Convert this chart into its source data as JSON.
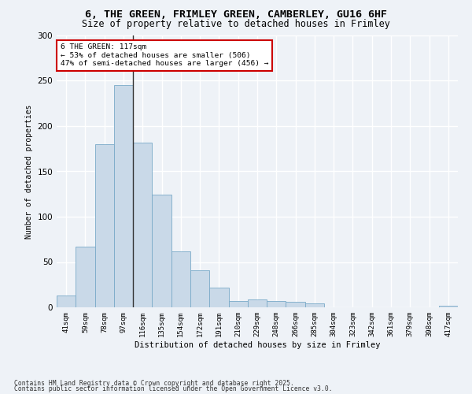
{
  "title_line1": "6, THE GREEN, FRIMLEY GREEN, CAMBERLEY, GU16 6HF",
  "title_line2": "Size of property relative to detached houses in Frimley",
  "xlabel": "Distribution of detached houses by size in Frimley",
  "ylabel": "Number of detached properties",
  "categories": [
    "41sqm",
    "59sqm",
    "78sqm",
    "97sqm",
    "116sqm",
    "135sqm",
    "154sqm",
    "172sqm",
    "191sqm",
    "210sqm",
    "229sqm",
    "248sqm",
    "266sqm",
    "285sqm",
    "304sqm",
    "323sqm",
    "342sqm",
    "361sqm",
    "379sqm",
    "398sqm",
    "417sqm"
  ],
  "values": [
    13,
    67,
    180,
    245,
    182,
    124,
    62,
    41,
    22,
    7,
    9,
    7,
    6,
    4,
    0,
    0,
    0,
    0,
    0,
    0,
    2
  ],
  "bar_color": "#c9d9e8",
  "bar_edge_color": "#7aaac8",
  "highlight_index": 4,
  "highlight_line_color": "#333333",
  "annotation_text": "6 THE GREEN: 117sqm\n← 53% of detached houses are smaller (506)\n47% of semi-detached houses are larger (456) →",
  "annotation_box_color": "#ffffff",
  "annotation_box_edge_color": "#cc0000",
  "ylim": [
    0,
    300
  ],
  "yticks": [
    0,
    50,
    100,
    150,
    200,
    250,
    300
  ],
  "background_color": "#eef2f7",
  "grid_color": "#ffffff",
  "footnote1": "Contains HM Land Registry data © Crown copyright and database right 2025.",
  "footnote2": "Contains public sector information licensed under the Open Government Licence v3.0."
}
